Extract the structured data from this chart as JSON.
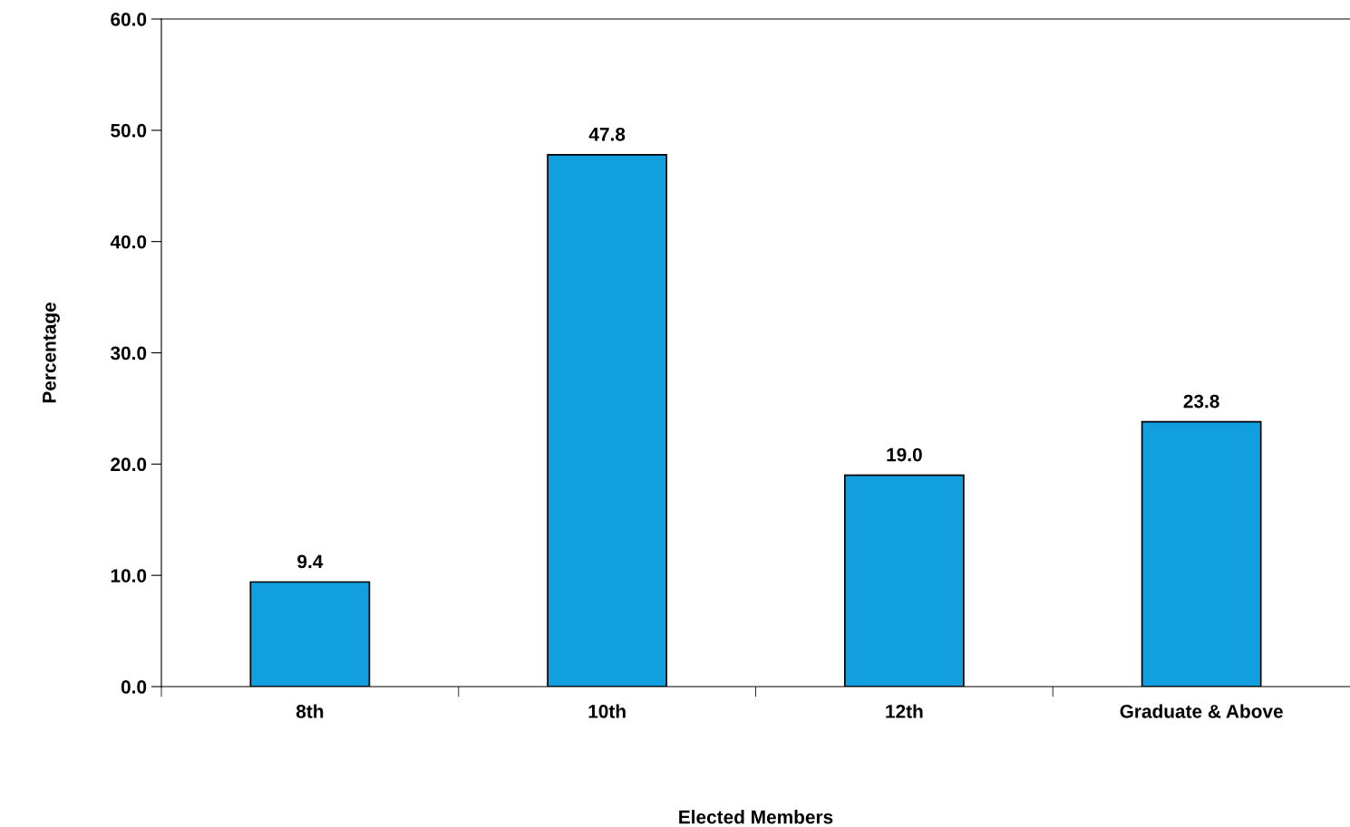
{
  "chart_data": {
    "type": "bar",
    "xlabel": "Elected Members",
    "ylabel": "Percentage",
    "categories": [
      "8th",
      "10th",
      "12th",
      "Graduate & Above"
    ],
    "values": [
      9.4,
      47.8,
      19.0,
      23.8
    ],
    "value_labels": [
      "9.4",
      "47.8",
      "19.0",
      "23.8"
    ],
    "color": "#129fe0",
    "ylim": [
      0,
      60
    ],
    "yticks": [
      {
        "value": 0,
        "label": "0.0"
      },
      {
        "value": 10,
        "label": "10.0"
      },
      {
        "value": 20,
        "label": "20.0"
      },
      {
        "value": 30,
        "label": "30.0"
      },
      {
        "value": 40,
        "label": "40.0"
      },
      {
        "value": 50,
        "label": "50.0"
      },
      {
        "value": 60,
        "label": "60.0"
      }
    ],
    "grid": false,
    "legend": false
  }
}
